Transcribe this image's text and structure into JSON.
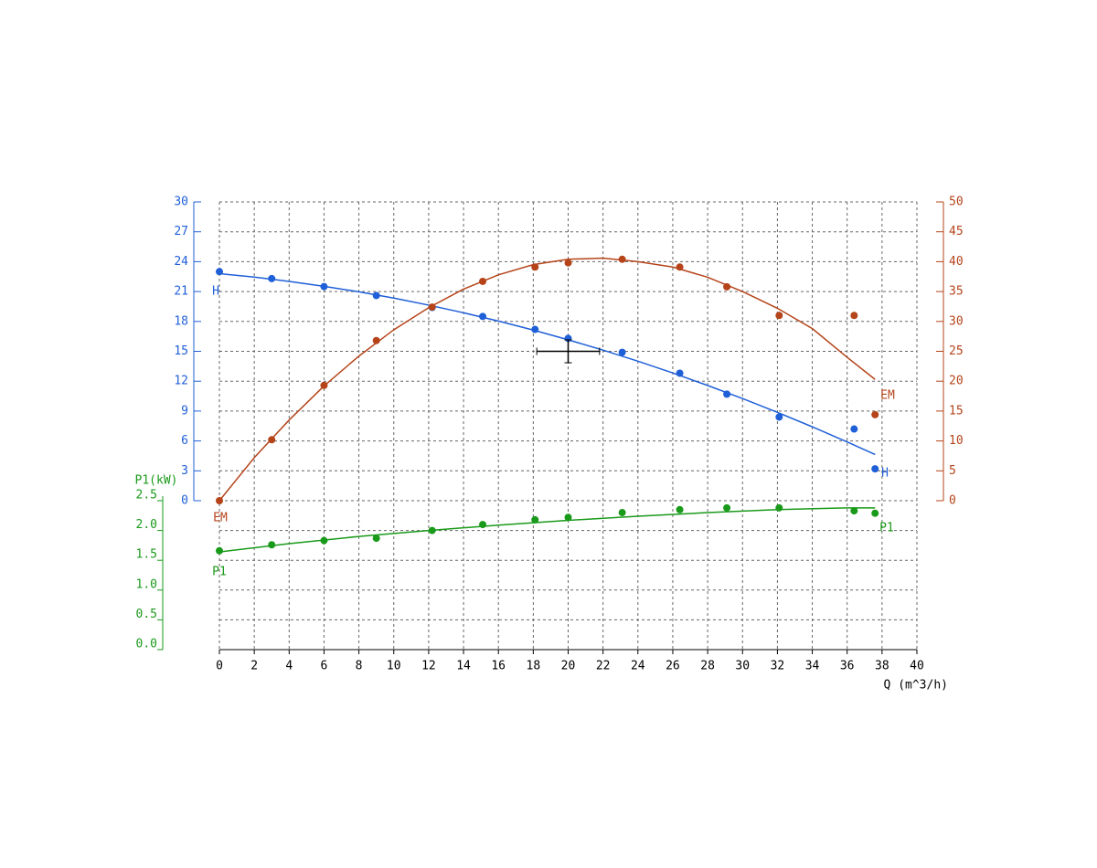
{
  "chart_data": {
    "type": "line",
    "xlabel": "Q (m^3/h)",
    "xlim": [
      0,
      40
    ],
    "xticks": [
      0,
      2,
      4,
      6,
      8,
      10,
      12,
      14,
      16,
      18,
      20,
      22,
      24,
      26,
      28,
      30,
      32,
      34,
      36,
      38,
      40
    ],
    "ylim": [
      0,
      30
    ],
    "yticks": [
      0,
      3,
      6,
      9,
      12,
      15,
      18,
      21,
      24,
      27,
      30
    ],
    "y2lim": [
      0,
      50
    ],
    "y2ticks": [
      0,
      5,
      10,
      15,
      20,
      25,
      30,
      35,
      40,
      45,
      50
    ],
    "y3label": "P1(kW)",
    "y3lim": [
      0,
      2.5
    ],
    "y3ticks": [
      {
        "value": 0,
        "label": "0.0"
      },
      {
        "value": 0.5,
        "label": "0.5"
      },
      {
        "value": 1,
        "label": "1.0"
      },
      {
        "value": 1.5,
        "label": "1.5"
      },
      {
        "value": 2,
        "label": "2.0"
      },
      {
        "value": 2.5,
        "label": "2.5"
      }
    ],
    "grid": true,
    "series": [
      {
        "name": "H",
        "color": "#1f5fd8",
        "axis": "y",
        "x": [
          0,
          3,
          6,
          9,
          12.2,
          15.1,
          18.1,
          20,
          23.1,
          26.4,
          29.1,
          32.1,
          36.4,
          37.6
        ],
        "values": [
          23.0,
          22.3,
          21.5,
          20.6,
          19.4,
          18.5,
          17.2,
          16.3,
          14.9,
          12.8,
          10.7,
          8.4,
          7.2,
          3.2
        ],
        "fit_x": [
          0,
          2,
          4,
          6,
          8,
          10,
          12,
          14,
          16,
          18,
          20,
          22,
          24,
          26,
          28,
          30,
          32,
          34,
          36,
          37.6
        ],
        "fit_values": [
          22.8,
          22.45,
          22.02,
          21.53,
          20.97,
          20.34,
          19.64,
          18.87,
          18.04,
          17.13,
          16.16,
          15.12,
          14.01,
          12.83,
          11.57,
          10.26,
          8.87,
          7.42,
          5.9,
          4.64
        ]
      },
      {
        "name": "EM",
        "color": "#b5441a",
        "axis": "y2",
        "x": [
          0,
          3,
          6,
          9,
          12.2,
          15.1,
          18.1,
          20,
          23.1,
          26.4,
          29.1,
          32.1,
          36.4,
          37.6
        ],
        "values": [
          0,
          10.2,
          19.3,
          26.8,
          32.4,
          36.7,
          39.1,
          39.8,
          40.4,
          39.1,
          35.8,
          31.0,
          31.0,
          14.4
        ],
        "fit_x": [
          0,
          2,
          4,
          6,
          8,
          10,
          12,
          14,
          16,
          18,
          20,
          22,
          24,
          26,
          28,
          30,
          32,
          34,
          36,
          37.6
        ],
        "fit_values": [
          0,
          7.2,
          13.5,
          19.2,
          24.2,
          28.6,
          32.3,
          35.4,
          37.8,
          39.5,
          40.4,
          40.6,
          40.0,
          39.1,
          37.4,
          35.0,
          32.2,
          28.8,
          24.0,
          20.3
        ]
      },
      {
        "name": "P1",
        "color": "#1a9a1a",
        "axis": "y3",
        "x": [
          0,
          3,
          6,
          9,
          12.2,
          15.1,
          18.1,
          20,
          23.1,
          26.4,
          29.1,
          32.1,
          36.4,
          37.6
        ],
        "values": [
          1.66,
          1.76,
          1.83,
          1.87,
          2.0,
          2.1,
          2.18,
          2.22,
          2.3,
          2.35,
          2.38,
          2.38,
          2.33,
          2.29
        ],
        "fit_x": [
          0,
          4,
          8,
          12,
          16,
          20,
          24,
          28,
          32,
          36,
          37.6
        ],
        "fit_values": [
          1.64,
          1.78,
          1.9,
          2.0,
          2.09,
          2.17,
          2.24,
          2.3,
          2.35,
          2.38,
          2.38
        ]
      }
    ],
    "duty_point": {
      "x": 20,
      "y": 15,
      "x_error": 1.8,
      "y_error": 1.15
    }
  }
}
